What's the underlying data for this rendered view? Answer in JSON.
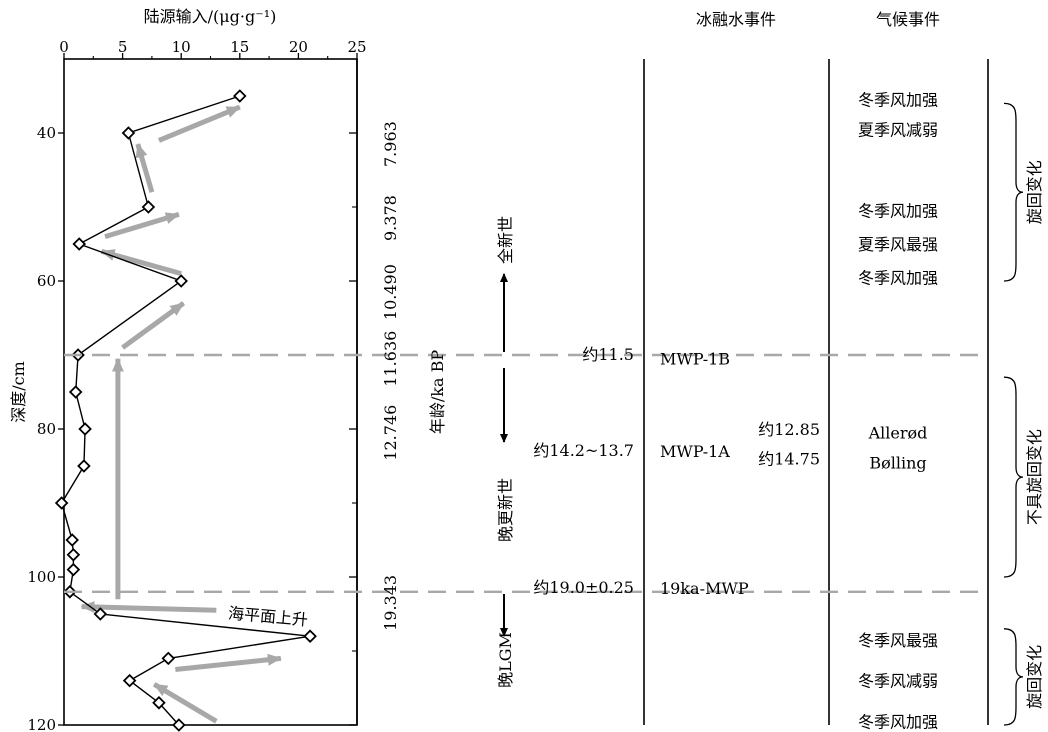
{
  "chart_data": {
    "type": "line",
    "xlabel": "陆源输入/(μg·g⁻¹)",
    "ylabel": "深度/cm",
    "xlim": [
      0,
      25
    ],
    "ylim": [
      30,
      120
    ],
    "x_ticks": [
      "0",
      "5",
      "10",
      "15",
      "20",
      "25"
    ],
    "y_ticks": [
      "40",
      "60",
      "80",
      "100",
      "120"
    ],
    "x_tick_values": [
      0,
      5,
      10,
      15,
      20,
      25
    ],
    "y_tick_values": [
      40,
      60,
      80,
      100,
      120
    ],
    "x_minor_ticks": [
      2.5,
      7.5,
      12.5,
      17.5,
      22.5
    ],
    "y_minor_ticks": [
      50,
      70,
      90,
      110
    ],
    "points": [
      {
        "x": 15.0,
        "y": 35
      },
      {
        "x": 5.5,
        "y": 40
      },
      {
        "x": 7.2,
        "y": 50
      },
      {
        "x": 1.3,
        "y": 55
      },
      {
        "x": 10.0,
        "y": 60
      },
      {
        "x": 1.2,
        "y": 70
      },
      {
        "x": 1.0,
        "y": 75
      },
      {
        "x": 1.8,
        "y": 80
      },
      {
        "x": 1.7,
        "y": 85
      },
      {
        "x": -0.2,
        "y": 90
      },
      {
        "x": 0.7,
        "y": 95
      },
      {
        "x": 0.8,
        "y": 97
      },
      {
        "x": 0.8,
        "y": 99
      },
      {
        "x": 0.5,
        "y": 102
      },
      {
        "x": 3.1,
        "y": 105
      },
      {
        "x": 21.0,
        "y": 108
      },
      {
        "x": 8.9,
        "y": 111
      },
      {
        "x": 5.6,
        "y": 114
      },
      {
        "x": 8.1,
        "y": 117
      },
      {
        "x": 9.8,
        "y": 120
      }
    ],
    "trend_arrows": [
      {
        "from": [
          8.1,
          41
        ],
        "to": [
          15.0,
          36.5
        ]
      },
      {
        "from": [
          7.5,
          48
        ],
        "to": [
          6.3,
          41.5
        ]
      },
      {
        "from": [
          3.5,
          54
        ],
        "to": [
          9.8,
          51
        ]
      },
      {
        "from": [
          10.0,
          59
        ],
        "to": [
          3.2,
          56
        ]
      },
      {
        "from": [
          5.0,
          69
        ],
        "to": [
          10.2,
          63
        ]
      },
      {
        "from": [
          4.6,
          103
        ],
        "to": [
          4.6,
          70.5
        ]
      },
      {
        "from": [
          13.0,
          104.5
        ],
        "to": [
          1.5,
          104
        ]
      },
      {
        "from": [
          9.5,
          112.5
        ],
        "to": [
          18.5,
          111
        ]
      },
      {
        "from": [
          13.0,
          119.5
        ],
        "to": [
          7.7,
          114.5
        ]
      }
    ],
    "sea_level_label": "海平面上升",
    "dashed_depths": [
      70,
      102
    ]
  },
  "table": {
    "headers": {
      "meltwater": "冰融水事件",
      "climate": "气候事件"
    },
    "ages": [
      {
        "text": "7.963",
        "depth": 41.5
      },
      {
        "text": "9.378",
        "depth": 51.5
      },
      {
        "text": "10.490",
        "depth": 61.5
      },
      {
        "text": "11.636",
        "depth": 70.5
      },
      {
        "text": "12.746",
        "depth": 80.5
      },
      {
        "text": "19.343",
        "depth": 103.5
      }
    ],
    "age_axis_label": "年龄/ka BP",
    "epochs": {
      "holocene": "全新世",
      "late_pleistocene": "晚更新世",
      "late_lgm": "晚LGM"
    },
    "boundary_ages": [
      {
        "text": "约11.5",
        "depth": 70
      },
      {
        "text": "约14.2~13.7",
        "depth": 83
      },
      {
        "text": "约19.0±0.25",
        "depth": 101.5
      }
    ],
    "meltwater_events": [
      {
        "text": "MWP-1B",
        "depth": 70.5
      },
      {
        "text": "MWP-1A",
        "depth": 83
      },
      {
        "text": "19ka-MWP",
        "depth": 101.5
      }
    ],
    "mwp1a_ages": [
      {
        "text": "约12.85",
        "depth": 80
      },
      {
        "text": "约14.75",
        "depth": 84
      }
    ],
    "climate_events": [
      {
        "text": "冬季风加强",
        "depth": 35.5
      },
      {
        "text": "夏季风减弱",
        "depth": 39.5
      },
      {
        "text": "冬季风加强",
        "depth": 50.5
      },
      {
        "text": "夏季风最强",
        "depth": 55
      },
      {
        "text": "冬季风加强",
        "depth": 59.5
      },
      {
        "text": "Allerød",
        "depth": 80.5
      },
      {
        "text": "Bølling",
        "depth": 84.5
      },
      {
        "text": "冬季风最强",
        "depth": 108.5
      },
      {
        "text": "冬季风减弱",
        "depth": 114
      },
      {
        "text": "冬季风加强",
        "depth": 119.5
      }
    ],
    "brace_labels": [
      {
        "text": "旋回变化",
        "from": 36,
        "to": 60
      },
      {
        "text": "不具旋回变化",
        "from": 73,
        "to": 100
      },
      {
        "text": "旋回变化",
        "from": 107,
        "to": 120
      }
    ]
  }
}
